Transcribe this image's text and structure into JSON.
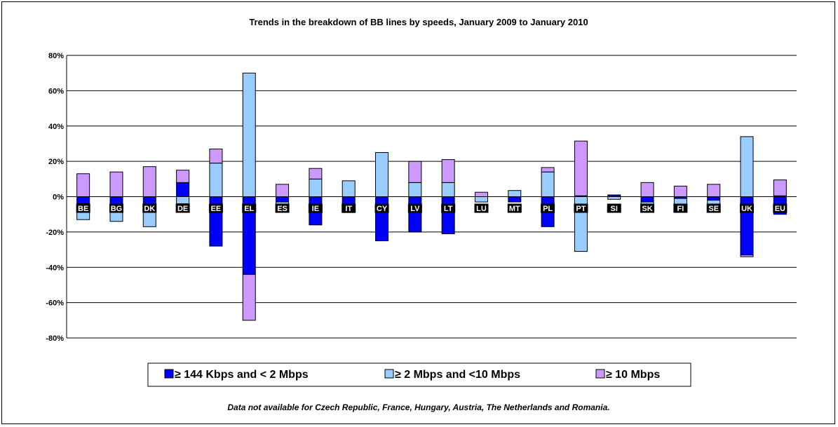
{
  "chart_data": {
    "type": "bar",
    "stacked": true,
    "title": "Trends in the breakdown of BB lines by speeds, January 2009 to January 2010",
    "ylim": [
      -80,
      80
    ],
    "yticks": [
      80,
      60,
      40,
      20,
      0,
      -20,
      -40,
      -60,
      -80
    ],
    "ytick_labels": [
      "80%",
      "60%",
      "40%",
      "20%",
      "0%",
      "-20%",
      "-40%",
      "-60%",
      "-80%"
    ],
    "grid": true,
    "legend_position": "bottom",
    "categories": [
      "BE",
      "BG",
      "DK",
      "DE",
      "EE",
      "EL",
      "ES",
      "IE",
      "IT",
      "CY",
      "LV",
      "LT",
      "LU",
      "MT",
      "PL",
      "PT",
      "SI",
      "SK",
      "FI",
      "SE",
      "UK",
      "EU"
    ],
    "series": [
      {
        "name": "≥ 144 Kbps and < 2 Mbps",
        "color": "#0000FF",
        "values": [
          -4,
          -5,
          -5,
          8,
          -28,
          -44,
          -3,
          -16,
          -9,
          -25,
          -20,
          -21,
          0,
          -3,
          -17,
          0.5,
          1,
          -3,
          -1,
          -2,
          -33,
          -10
        ]
      },
      {
        "name": "≥ 2 Mbps and <10 Mbps",
        "color": "#99CCFF",
        "values": [
          -9,
          -9,
          -12,
          -4,
          19,
          70,
          -3,
          10,
          9,
          25,
          8,
          8,
          -3,
          3.5,
          14,
          -31,
          -1.5,
          -2,
          -5,
          -3,
          34,
          0.5
        ]
      },
      {
        "name": "≥ 10 Mbps",
        "color": "#CC99FF",
        "values": [
          13,
          14,
          17,
          7,
          8,
          -26,
          7,
          6,
          0,
          0,
          12,
          13,
          2.5,
          0,
          2.5,
          31,
          0,
          8,
          6,
          7,
          -1,
          9
        ]
      }
    ]
  },
  "footnote": "Data not available for Czech Republic, France, Hungary, Austria, The Netherlands and Romania.",
  "colors": {
    "background": "#ffffff",
    "grid": "#000000",
    "label_bg": "#000000"
  }
}
